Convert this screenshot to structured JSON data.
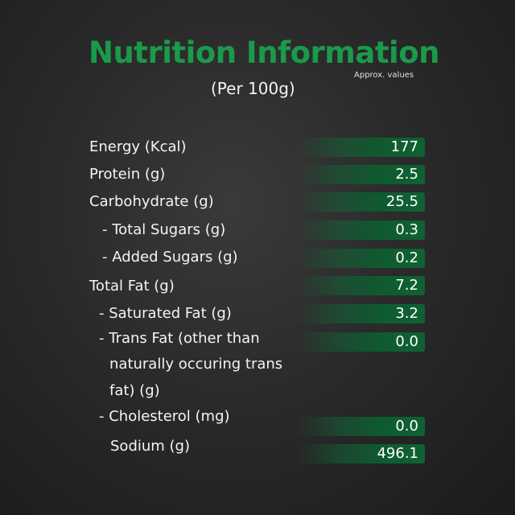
{
  "header": {
    "title": "Nutrition Information",
    "note": "Approx. values",
    "subtitle": "(Per 100g)"
  },
  "rows": [
    {
      "label": "Energy (Kcal)",
      "value": "177"
    },
    {
      "label": "Protein (g)",
      "value": "2.5"
    },
    {
      "label": "Carbohydrate (g)",
      "value": "25.5"
    },
    {
      "label": "- Total Sugars (g)",
      "value": "0.3"
    },
    {
      "label": "- Added Sugars (g)",
      "value": "0.2"
    },
    {
      "label": "Total Fat (g)",
      "value": "7.2"
    },
    {
      "label": "- Saturated Fat (g)",
      "value": "3.2"
    },
    {
      "label": "- Trans Fat (other than",
      "label2": "naturally occuring trans",
      "label3": "fat) (g)",
      "value": "0.0"
    },
    {
      "label": "- Cholesterol (mg)",
      "value": "0.0"
    },
    {
      "label": "Sodium (g)",
      "value": "496.1"
    }
  ],
  "colors": {
    "accent": "#1a9a4a",
    "bar": "#0f5a2f"
  }
}
